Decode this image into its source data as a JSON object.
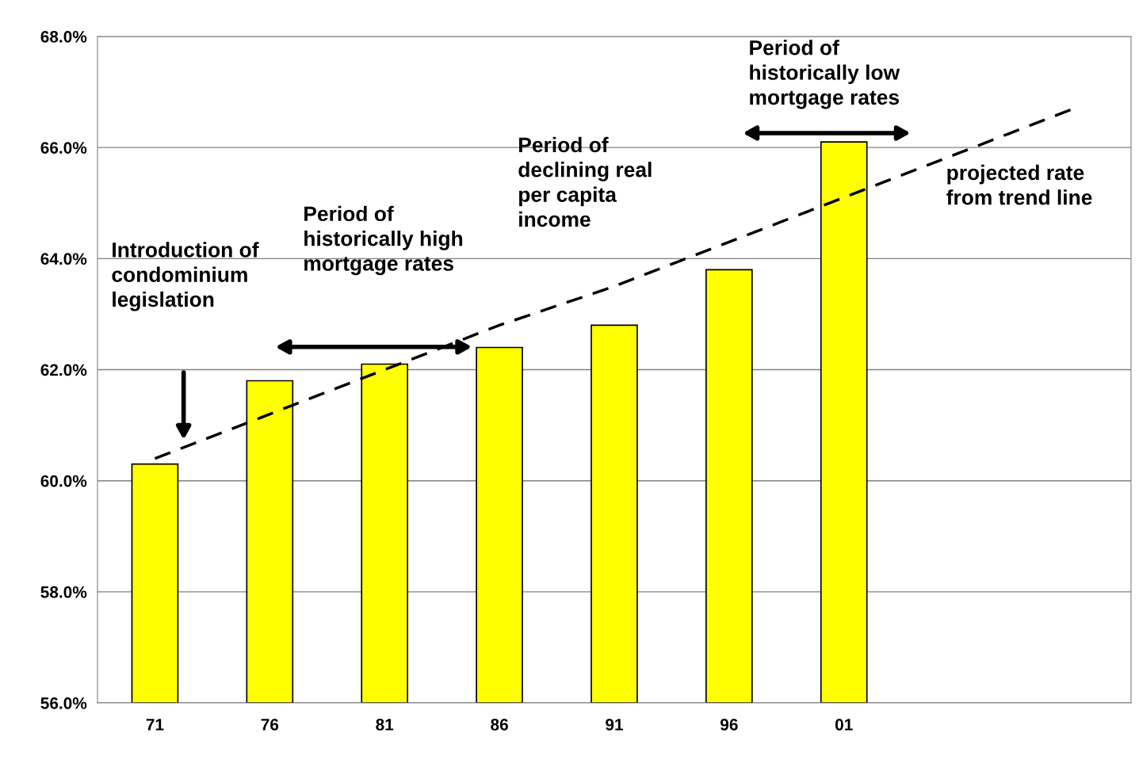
{
  "chart_data": {
    "type": "bar",
    "categories": [
      "71",
      "76",
      "81",
      "86",
      "91",
      "96",
      "01",
      null,
      null
    ],
    "series": [
      {
        "color": "#ffff00",
        "values": [
          60.3,
          61.8,
          62.1,
          62.4,
          62.8,
          63.8,
          66.1,
          null,
          null
        ]
      },
      {
        "type": "line",
        "color": "#000000",
        "line_style": "dashed",
        "values": [
          60.4,
          61.2,
          62.0,
          62.8,
          63.5,
          64.3,
          65.1,
          65.9,
          66.7
        ]
      }
    ],
    "ylim": [
      56,
      68
    ],
    "yticks": [
      {
        "value": 56,
        "label": "56.0%"
      },
      {
        "value": 58,
        "label": "58.0%"
      },
      {
        "value": 60,
        "label": "60.0%"
      },
      {
        "value": 62,
        "label": "62.0%"
      },
      {
        "value": 64,
        "label": "64.0%"
      },
      {
        "value": 66,
        "label": "66.0%"
      },
      {
        "value": 68,
        "label": "68.0%"
      }
    ],
    "grid": "y",
    "legend": false,
    "annotations": [
      "Introduction of\ncondominium\nlegislation",
      "Period of\nhistorically high\nmortgage rates",
      "Period of\ndeclining real\nper capita\nincome",
      "Period of\nhistorically low\nmortgage rates",
      "projected rate\nfrom trend line"
    ]
  }
}
